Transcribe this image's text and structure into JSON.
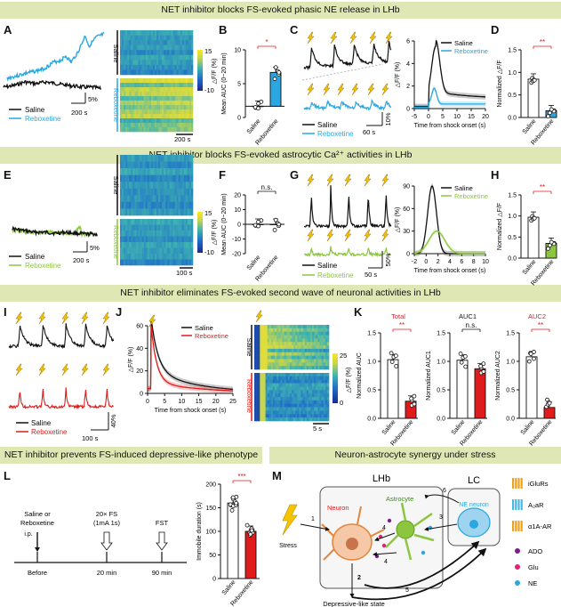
{
  "banners": [
    "NET inhibitor blocks FS-evoked phasic NE release in LHb",
    "NET inhibitor blocks FS-evoked astrocytic Ca²⁺ activities in LHb",
    "NET inhibitor eliminates FS-evoked second wave of neuronal activities in LHb",
    "NET inhibitor prevents FS-induced depressive-like phenotype",
    "Neuron-astrocyte synergy under stress"
  ],
  "panel_letters": [
    "A",
    "B",
    "C",
    "D",
    "E",
    "F",
    "G",
    "H",
    "I",
    "J",
    "K",
    "L",
    "M"
  ],
  "legend": {
    "saline": "Saline",
    "reboxetine": "Reboxetine"
  },
  "colors": {
    "saline": "#111111",
    "reboxetine_a": "#2aa7e0",
    "reboxetine_e": "#8cc63f",
    "reboxetine_i": "#e01b1b",
    "sig": "#e01b1b",
    "banner": "#dfe8b4"
  },
  "sig": {
    "one": "*",
    "two": "**",
    "three": "***",
    "ns": "n.s."
  },
  "A": {
    "scale_x": "200 s",
    "scale_y": "5%",
    "hm_scale": "200 s",
    "cb_max": "15",
    "cb_min": "-10",
    "cb_label": "△F/F (%)"
  },
  "B": {
    "ylabel": "Mean AUC (0~20 min)",
    "ticks": [
      "10",
      "5",
      "0"
    ],
    "values": [
      0,
      6
    ]
  },
  "C": {
    "scale_x": "60 s",
    "scale_y": "10%",
    "ylabel": "△F/F (%)",
    "xlabel": "Time from shock onset (s)",
    "yticks": [
      "6",
      "4",
      "2",
      "0"
    ],
    "xticks": [
      "-5",
      "0",
      "5",
      "10",
      "15",
      "20"
    ]
  },
  "D": {
    "ylabel": "Normalized △F/F",
    "ticks": [
      "1.5",
      "1.0",
      "0.5",
      "0.0"
    ],
    "values": [
      0.85,
      0.15
    ]
  },
  "E": {
    "scale_x": "200 s",
    "scale_y": "5%",
    "hm_scale": "100 s",
    "cb_max": "15",
    "cb_min": "-10",
    "cb_label": "△F/F (%)"
  },
  "F": {
    "ylabel": "Mean AUC (0~20 min)",
    "ticks": [
      "20",
      "10",
      "0",
      "-10",
      "-20"
    ],
    "values": [
      0,
      0
    ]
  },
  "G": {
    "scale_x": "50 s",
    "scale_y": "50%",
    "ylabel": "△F/F (%)",
    "xlabel": "Time from shock onset (s)",
    "yticks": [
      "90",
      "60",
      "30",
      "0"
    ],
    "xticks": [
      "-2",
      "0",
      "2",
      "4",
      "6",
      "8",
      "10"
    ]
  },
  "H": {
    "ylabel": "Normalized △F/F",
    "ticks": [
      "1.5",
      "1.0",
      "0.5",
      "0.0"
    ],
    "values": [
      0.97,
      0.35
    ]
  },
  "I": {
    "scale_x": "100 s",
    "scale_y": "40%"
  },
  "J": {
    "ylabel": "△F/F (%)",
    "xlabel": "Time from shock onset (s)",
    "yticks": [
      "60",
      "40",
      "20",
      "0"
    ],
    "xticks": [
      "0",
      "5",
      "10",
      "15",
      "20",
      "25"
    ],
    "hm_scale": "5 s",
    "cb_max": "25",
    "cb_min": "0",
    "cb_label": "△F/F (%)"
  },
  "K": {
    "titles": [
      "Total",
      "AUC1",
      "AUC2"
    ],
    "ylabels": [
      "Normalized AUC",
      "Normalized AUC1",
      "Normalized AUC2"
    ],
    "ticks": [
      "1.5",
      "1.0",
      "0.5",
      "0.0"
    ],
    "values": [
      [
        1.03,
        0.3
      ],
      [
        1.02,
        0.87
      ],
      [
        1.08,
        0.19
      ]
    ]
  },
  "L": {
    "step1": "Saline or",
    "step1b": "Reboxetine",
    "ip": "i.p.",
    "step2": "20× FS",
    "step2b": "(1mA 1s)",
    "step3": "FST",
    "t1": "Before",
    "t2": "20 min",
    "t3": "90 min",
    "ylabel": "Immobile duration (s)",
    "ticks": [
      "200",
      "150",
      "100",
      "50",
      "0"
    ],
    "values": [
      160,
      100
    ]
  },
  "M": {
    "lhb": "LHb",
    "lc": "LC",
    "neuron": "Neuron",
    "astrocyte": "Astrocyte",
    "ne_neuron": "NE neuron",
    "stress": "Stress",
    "outcome": "Depressive-like state",
    "steps": [
      "1",
      "2",
      "3",
      "4",
      "4",
      "5",
      "6"
    ],
    "legend": [
      "iGluRs",
      "A₂aR",
      "α1A-AR",
      "ADO",
      "Glu",
      "NE"
    ],
    "legend_colors": [
      "#f0a019",
      "#49b6e6",
      "#f0a019",
      "#7a1f8a",
      "#e0237a",
      "#2aa7e0"
    ]
  }
}
